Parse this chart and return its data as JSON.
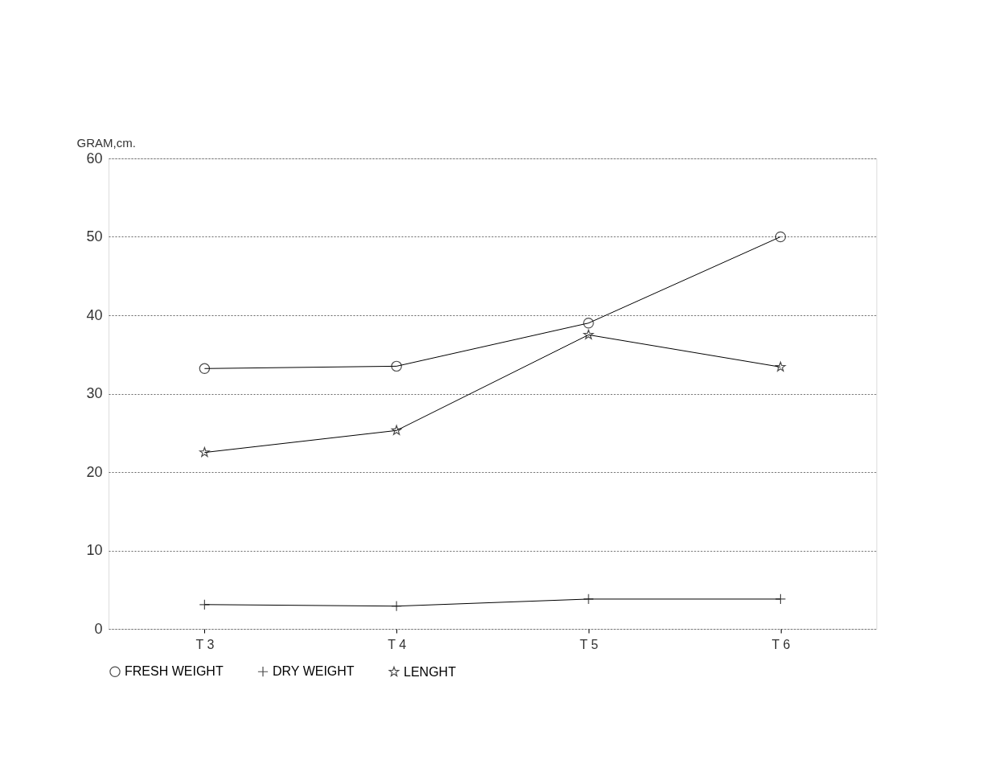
{
  "chart_data": {
    "type": "line",
    "ylabel": "GRAM,cm.",
    "categories": [
      "T 3",
      "T 4",
      "T 5",
      "T 6"
    ],
    "series": [
      {
        "name": "FRESH WEIGHT",
        "color": "#000000",
        "marker": "circle",
        "values": [
          33.2,
          33.5,
          39.0,
          50.0
        ]
      },
      {
        "name": "DRY WEIGHT",
        "color": "#000000",
        "marker": "cross",
        "values": [
          3.1,
          2.9,
          3.8,
          3.8
        ]
      },
      {
        "name": "LENGHT",
        "color": "#000000",
        "marker": "star",
        "values": [
          22.5,
          25.3,
          37.5,
          33.4
        ]
      }
    ],
    "ylim": [
      0,
      60
    ],
    "yticks": [
      0,
      10,
      20,
      30,
      40,
      50,
      60
    ],
    "grid": "y",
    "legend": "bottom",
    "line_style": "solid"
  }
}
